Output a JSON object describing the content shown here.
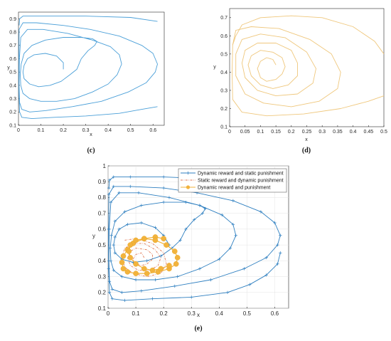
{
  "chart_data": [
    {
      "id": "c",
      "type": "line",
      "caption": "(c)",
      "xlabel": "x",
      "ylabel": "y",
      "xlim": [
        0,
        0.65
      ],
      "ylim": [
        0.1,
        0.95
      ],
      "xticks": [
        "0",
        "0.1",
        "0.2",
        "0.3",
        "0.4",
        "0.5",
        "0.6"
      ],
      "yticks": [
        "0.1",
        "0.2",
        "0.3",
        "0.4",
        "0.5",
        "0.6",
        "0.7",
        "0.8",
        "0.9"
      ],
      "grid": false,
      "series": [
        {
          "color": "#4a9fd8",
          "x": [
            0.2,
            0.2,
            0.17,
            0.12,
            0.07,
            0.04,
            0.025,
            0.02,
            0.025,
            0.05,
            0.09,
            0.14,
            0.19,
            0.23,
            0.26,
            0.28,
            0.31,
            0.34,
            0.35,
            0.33,
            0.28,
            0.2,
            0.12,
            0.06,
            0.025,
            0.012,
            0.008,
            0.01,
            0.02,
            0.05,
            0.1,
            0.17,
            0.25,
            0.33,
            0.4,
            0.44,
            0.46,
            0.45,
            0.41,
            0.33,
            0.22,
            0.11,
            0.04,
            0.01,
            0.004,
            0.003,
            0.005,
            0.015,
            0.05,
            0.12,
            0.24,
            0.37,
            0.49,
            0.57,
            0.61,
            0.62,
            0.6,
            0.55,
            0.45,
            0.32,
            0.2,
            0.08,
            0.02,
            0.003,
            0.002,
            0.002,
            0.005,
            0.015,
            0.06,
            0.16,
            0.3,
            0.45,
            0.55,
            0.62
          ],
          "y": [
            0.52,
            0.57,
            0.62,
            0.64,
            0.63,
            0.6,
            0.55,
            0.5,
            0.45,
            0.41,
            0.39,
            0.4,
            0.43,
            0.48,
            0.52,
            0.6,
            0.66,
            0.7,
            0.73,
            0.75,
            0.76,
            0.76,
            0.74,
            0.7,
            0.64,
            0.56,
            0.48,
            0.4,
            0.34,
            0.3,
            0.28,
            0.28,
            0.3,
            0.35,
            0.41,
            0.48,
            0.56,
            0.63,
            0.69,
            0.74,
            0.79,
            0.82,
            0.82,
            0.76,
            0.6,
            0.4,
            0.27,
            0.22,
            0.2,
            0.21,
            0.24,
            0.28,
            0.35,
            0.42,
            0.5,
            0.56,
            0.64,
            0.7,
            0.77,
            0.82,
            0.85,
            0.87,
            0.87,
            0.82,
            0.6,
            0.35,
            0.2,
            0.16,
            0.15,
            0.16,
            0.17,
            0.19,
            0.22,
            0.24
          ]
        },
        {
          "color": "#4a9fd8",
          "x": [
            0.62,
            0.5,
            0.3,
            0.1,
            0.02,
            0.005,
            0.003
          ],
          "y": [
            0.88,
            0.91,
            0.92,
            0.92,
            0.92,
            0.9,
            0.85
          ]
        }
      ]
    },
    {
      "id": "d",
      "type": "line",
      "caption": "(d)",
      "xlabel": "x",
      "ylabel": "y",
      "xlim": [
        0,
        0.5
      ],
      "ylim": [
        0.1,
        0.75
      ],
      "xticks": [
        "0",
        "0.05",
        "0.1",
        "0.15",
        "0.2",
        "0.25",
        "0.3",
        "0.35",
        "0.4",
        "0.45",
        "0.5"
      ],
      "yticks": [
        "0.1",
        "0.2",
        "0.3",
        "0.4",
        "0.5",
        "0.6",
        "0.7"
      ],
      "grid": false,
      "series": [
        {
          "color": "#efc77c",
          "x": [
            0.15,
            0.14,
            0.12,
            0.1,
            0.09,
            0.1,
            0.12,
            0.15,
            0.17,
            0.18,
            0.17,
            0.14,
            0.1,
            0.07,
            0.06,
            0.07,
            0.1,
            0.14,
            0.19,
            0.22,
            0.22,
            0.2,
            0.15,
            0.09,
            0.05,
            0.04,
            0.05,
            0.09,
            0.15,
            0.22,
            0.27,
            0.28,
            0.25,
            0.18,
            0.1,
            0.04,
            0.02,
            0.02,
            0.05,
            0.11,
            0.2,
            0.29,
            0.35,
            0.36,
            0.33,
            0.26,
            0.16,
            0.07,
            0.02,
            0.01,
            0.008,
            0.01,
            0.04,
            0.12,
            0.24,
            0.36,
            0.45,
            0.5
          ],
          "y": [
            0.44,
            0.47,
            0.48,
            0.46,
            0.42,
            0.37,
            0.35,
            0.36,
            0.39,
            0.43,
            0.48,
            0.51,
            0.52,
            0.49,
            0.44,
            0.38,
            0.33,
            0.31,
            0.33,
            0.38,
            0.45,
            0.52,
            0.56,
            0.56,
            0.52,
            0.45,
            0.37,
            0.3,
            0.27,
            0.28,
            0.34,
            0.42,
            0.51,
            0.59,
            0.61,
            0.58,
            0.5,
            0.38,
            0.28,
            0.23,
            0.21,
            0.24,
            0.31,
            0.4,
            0.5,
            0.58,
            0.64,
            0.65,
            0.63,
            0.55,
            0.4,
            0.25,
            0.18,
            0.16,
            0.17,
            0.2,
            0.24,
            0.27
          ]
        },
        {
          "color": "#efc77c",
          "x": [
            0.5,
            0.47,
            0.4,
            0.3,
            0.2,
            0.1,
            0.04,
            0.02,
            0.01
          ],
          "y": [
            0.5,
            0.57,
            0.65,
            0.7,
            0.71,
            0.7,
            0.66,
            0.6,
            0.55
          ]
        }
      ]
    },
    {
      "id": "e",
      "type": "line",
      "caption": "(e)",
      "xlabel": "x",
      "ylabel": "y",
      "xlim": [
        0,
        0.65
      ],
      "ylim": [
        0.1,
        1.0
      ],
      "xticks": [
        "0",
        "0.1",
        "0.2",
        "0.3",
        "0.4",
        "0.5",
        "0.6"
      ],
      "yticks": [
        "0.1",
        "0.2",
        "0.3",
        "0.4",
        "0.5",
        "0.6",
        "0.7",
        "0.8",
        "0.9",
        "1"
      ],
      "grid": true,
      "legend_position": "top-right",
      "legend": [
        "Dynamic reward and static punishment",
        "Static reward and dynamic punishment",
        "Dynamic reward and punishment"
      ],
      "series": [
        {
          "name": "Dynamic reward and static punishment",
          "color": "#2e7fc0",
          "marker": "plus",
          "x": [
            0.22,
            0.2,
            0.17,
            0.12,
            0.07,
            0.04,
            0.025,
            0.02,
            0.025,
            0.05,
            0.09,
            0.14,
            0.19,
            0.23,
            0.26,
            0.28,
            0.31,
            0.34,
            0.35,
            0.33,
            0.28,
            0.2,
            0.12,
            0.06,
            0.025,
            0.012,
            0.008,
            0.01,
            0.02,
            0.05,
            0.1,
            0.17,
            0.25,
            0.33,
            0.4,
            0.44,
            0.46,
            0.45,
            0.41,
            0.33,
            0.22,
            0.11,
            0.04,
            0.01,
            0.004,
            0.003,
            0.005,
            0.015,
            0.05,
            0.12,
            0.24,
            0.37,
            0.49,
            0.57,
            0.61,
            0.62,
            0.6,
            0.55,
            0.45,
            0.32,
            0.2,
            0.08,
            0.02,
            0.003,
            0.002,
            0.002,
            0.005,
            0.015,
            0.06,
            0.16,
            0.3,
            0.43,
            0.51,
            0.57,
            0.61,
            0.62
          ],
          "y": [
            0.5,
            0.56,
            0.61,
            0.64,
            0.63,
            0.6,
            0.55,
            0.5,
            0.45,
            0.41,
            0.39,
            0.4,
            0.43,
            0.48,
            0.53,
            0.6,
            0.66,
            0.7,
            0.73,
            0.75,
            0.77,
            0.77,
            0.75,
            0.71,
            0.65,
            0.56,
            0.48,
            0.4,
            0.34,
            0.3,
            0.28,
            0.28,
            0.3,
            0.35,
            0.41,
            0.48,
            0.56,
            0.63,
            0.69,
            0.75,
            0.8,
            0.83,
            0.83,
            0.77,
            0.6,
            0.4,
            0.27,
            0.22,
            0.2,
            0.21,
            0.24,
            0.28,
            0.35,
            0.42,
            0.5,
            0.56,
            0.64,
            0.71,
            0.78,
            0.83,
            0.86,
            0.87,
            0.87,
            0.82,
            0.6,
            0.35,
            0.2,
            0.16,
            0.15,
            0.16,
            0.17,
            0.2,
            0.25,
            0.31,
            0.38,
            0.45
          ]
        },
        {
          "name": "Dynamic reward and static punishment",
          "color": "#2e7fc0",
          "marker": "plus",
          "x": [
            0.6,
            0.5,
            0.35,
            0.2,
            0.08,
            0.02,
            0.005,
            0.003
          ],
          "y": [
            0.86,
            0.9,
            0.92,
            0.93,
            0.93,
            0.93,
            0.91,
            0.86
          ]
        },
        {
          "name": "Static reward and dynamic punishment",
          "color": "#e07a56",
          "dash": "dashdot",
          "x": [
            0.13,
            0.12,
            0.1,
            0.09,
            0.1,
            0.12,
            0.14,
            0.16,
            0.16,
            0.14,
            0.1,
            0.08,
            0.07,
            0.08,
            0.11,
            0.15,
            0.18,
            0.19,
            0.17,
            0.13,
            0.09,
            0.06,
            0.05,
            0.06,
            0.09,
            0.14,
            0.19,
            0.21,
            0.2,
            0.16,
            0.1,
            0.06
          ],
          "y": [
            0.42,
            0.45,
            0.44,
            0.41,
            0.38,
            0.37,
            0.38,
            0.41,
            0.44,
            0.47,
            0.48,
            0.46,
            0.42,
            0.37,
            0.34,
            0.34,
            0.37,
            0.42,
            0.47,
            0.51,
            0.51,
            0.48,
            0.42,
            0.36,
            0.32,
            0.3,
            0.32,
            0.38,
            0.45,
            0.51,
            0.54,
            0.53
          ]
        },
        {
          "name": "Dynamic reward and punishment",
          "color": "#f2b33d",
          "marker": "star",
          "x": [
            0.2,
            0.17,
            0.13,
            0.09,
            0.07,
            0.055,
            0.05,
            0.055,
            0.07,
            0.1,
            0.14,
            0.18,
            0.22,
            0.245,
            0.25,
            0.24,
            0.21,
            0.17,
            0.13,
            0.1,
            0.08,
            0.075,
            0.08,
            0.1,
            0.13,
            0.16,
            0.19,
            0.22
          ],
          "y": [
            0.54,
            0.55,
            0.54,
            0.51,
            0.47,
            0.43,
            0.39,
            0.35,
            0.33,
            0.32,
            0.32,
            0.33,
            0.35,
            0.38,
            0.42,
            0.46,
            0.5,
            0.53,
            0.54,
            0.53,
            0.5,
            0.46,
            0.42,
            0.38,
            0.35,
            0.34,
            0.35,
            0.37
          ]
        }
      ]
    }
  ]
}
